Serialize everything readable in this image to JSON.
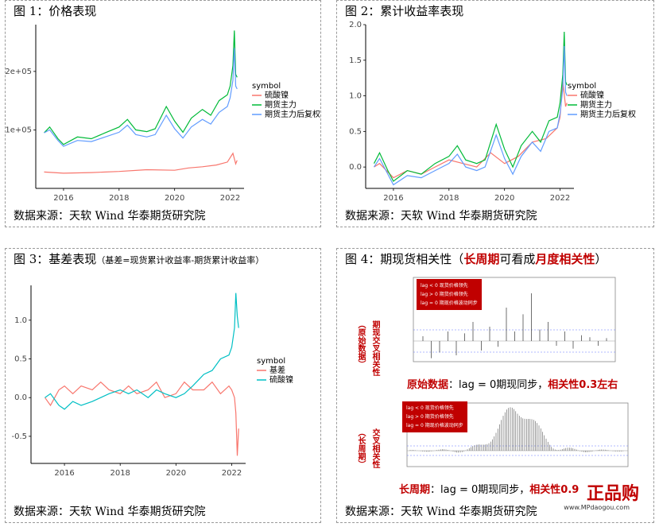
{
  "panels": [
    {
      "title": "图 1：价格表现",
      "source": "数据来源：天软 Wind 华泰期货研究院"
    },
    {
      "title": "图 2：累计收益率表现",
      "source": "数据来源：天软 Wind 华泰期货研究院"
    },
    {
      "title": "图 3：基差表现",
      "title_note": "（基差=现货累计收益率-期货累计收益率）",
      "source": "数据来源：天软 Wind 华泰期货研究院"
    },
    {
      "title": "图 4：期现货相关性（",
      "title_red": "长周期",
      "title_mid": "可看成",
      "title_red2": "月度相关性",
      "title_end": "）",
      "source": "数据来源：天软 Wind 华泰期货研究院"
    }
  ],
  "fig4": {
    "box1": [
      "lag < 0 现货价格领先",
      "lag > 0 期货价格领先",
      "lag = 0 期现价格波动同步"
    ],
    "box2": [
      "lag < 0 现货价格领先",
      "lag > 0 期货价格领先",
      "lag = 0 期现价格波动同步"
    ],
    "vlabel1a": "（原始数据）",
    "vlabel1b": "期现交叉相关性",
    "vlabel2a": "（长周期）",
    "vlabel2b": "交叉相关性",
    "cap1_a": "原始数据",
    "cap1_b": "：lag = 0期现同步，",
    "cap1_c": "相关性0.3左右",
    "cap2_a": "长周期",
    "cap2_b": "：lag = 0期现同步，",
    "cap2_c": "相关性0.9",
    "watermark": "正品购",
    "watermark2": "www.MPdaogou.com"
  },
  "chart_data": [
    {
      "type": "line",
      "legend_title": "symbol",
      "legend_position": "right",
      "xticks": [
        "2016",
        "2018",
        "2020",
        "2022"
      ],
      "yticks": [
        "1e+05",
        "2e+05"
      ],
      "ylim": [
        0,
        280000
      ],
      "xlim": [
        2015.0,
        2022.5
      ],
      "series": [
        {
          "name": "硫酸镍",
          "color": "#f8766d",
          "x": [
            2015.3,
            2016,
            2017,
            2018,
            2019,
            2020,
            2020.5,
            2021,
            2021.5,
            2021.9,
            2022.1,
            2022.2,
            2022.25
          ],
          "y": [
            28000,
            26000,
            27000,
            29000,
            32000,
            31000,
            35000,
            37000,
            40000,
            45000,
            60000,
            42000,
            48000
          ]
        },
        {
          "name": "期货主力",
          "color": "#00ba38",
          "x": [
            2015.3,
            2015.5,
            2015.8,
            2016,
            2016.5,
            2017,
            2017.5,
            2018,
            2018.3,
            2018.6,
            2019,
            2019.3,
            2019.7,
            2020,
            2020.3,
            2020.6,
            2021,
            2021.3,
            2021.6,
            2021.9,
            2022,
            2022.1,
            2022.15,
            2022.2,
            2022.25
          ],
          "y": [
            95000,
            105000,
            85000,
            75000,
            88000,
            85000,
            95000,
            105000,
            118000,
            100000,
            97000,
            102000,
            140000,
            115000,
            96000,
            120000,
            135000,
            125000,
            150000,
            160000,
            175000,
            210000,
            270000,
            195000,
            190000
          ]
        },
        {
          "name": "期货主力后复权",
          "color": "#619cff",
          "x": [
            2015.3,
            2015.5,
            2015.8,
            2016,
            2016.5,
            2017,
            2017.5,
            2018,
            2018.3,
            2018.6,
            2019,
            2019.3,
            2019.7,
            2020,
            2020.3,
            2020.6,
            2021,
            2021.3,
            2021.6,
            2021.9,
            2022,
            2022.1,
            2022.15,
            2022.2,
            2022.25
          ],
          "y": [
            95000,
            100000,
            82000,
            72000,
            82000,
            80000,
            88000,
            96000,
            108000,
            92000,
            88000,
            92000,
            125000,
            102000,
            86000,
            105000,
            118000,
            110000,
            130000,
            140000,
            155000,
            185000,
            240000,
            175000,
            170000
          ]
        }
      ]
    },
    {
      "type": "line",
      "legend_title": "symbol",
      "legend_position": "right",
      "xticks": [
        "2016",
        "2018",
        "2020",
        "2022"
      ],
      "yticks": [
        "0.0",
        "0.5",
        "1.0",
        "1.5",
        "2.0"
      ],
      "ylim": [
        -0.3,
        2.0
      ],
      "xlim": [
        2015.0,
        2022.5
      ],
      "series": [
        {
          "name": "硫酸镍",
          "color": "#f8766d",
          "x": [
            2015.3,
            2015.5,
            2016,
            2016.5,
            2017,
            2017.5,
            2018,
            2018.5,
            2019,
            2019.5,
            2020,
            2020.5,
            2021,
            2021.5,
            2021.9,
            2022,
            2022.1,
            2022.2,
            2022.25
          ],
          "y": [
            0.0,
            0.05,
            -0.15,
            -0.05,
            -0.1,
            0.0,
            0.1,
            0.05,
            0.0,
            0.2,
            0.05,
            0.15,
            0.35,
            0.4,
            0.55,
            0.7,
            1.2,
            0.85,
            0.9
          ]
        },
        {
          "name": "期货主力",
          "color": "#00ba38",
          "x": [
            2015.3,
            2015.5,
            2015.8,
            2016,
            2016.5,
            2017,
            2017.5,
            2018,
            2018.3,
            2018.6,
            2019,
            2019.3,
            2019.7,
            2020,
            2020.3,
            2020.6,
            2021,
            2021.3,
            2021.6,
            2021.9,
            2022,
            2022.1,
            2022.15,
            2022.2,
            2022.25
          ],
          "y": [
            0.05,
            0.2,
            -0.05,
            -0.2,
            -0.05,
            -0.1,
            0.05,
            0.15,
            0.3,
            0.1,
            0.05,
            0.1,
            0.6,
            0.25,
            0.0,
            0.3,
            0.5,
            0.35,
            0.65,
            0.7,
            0.9,
            1.3,
            1.9,
            1.2,
            1.15
          ]
        },
        {
          "name": "期货主力后复权",
          "color": "#619cff",
          "x": [
            2015.3,
            2015.5,
            2015.8,
            2016,
            2016.5,
            2017,
            2017.5,
            2018,
            2018.3,
            2018.6,
            2019,
            2019.3,
            2019.7,
            2020,
            2020.3,
            2020.6,
            2021,
            2021.3,
            2021.6,
            2021.9,
            2022,
            2022.1,
            2022.15,
            2022.2,
            2022.25
          ],
          "y": [
            0.0,
            0.12,
            -0.1,
            -0.25,
            -0.12,
            -0.15,
            -0.05,
            0.05,
            0.18,
            0.0,
            -0.05,
            0.0,
            0.45,
            0.12,
            -0.1,
            0.15,
            0.35,
            0.22,
            0.5,
            0.55,
            0.75,
            1.1,
            1.7,
            1.05,
            1.0
          ]
        }
      ]
    },
    {
      "type": "line",
      "legend_title": "symbol",
      "legend_position": "right",
      "xticks": [
        "2016",
        "2018",
        "2020",
        "2022"
      ],
      "yticks": [
        "-0.5",
        "0.0",
        "0.5",
        "1.0"
      ],
      "ylim": [
        -0.85,
        1.45
      ],
      "xlim": [
        2014.8,
        2022.5
      ],
      "series": [
        {
          "name": "基差",
          "color": "#f8766d",
          "x": [
            2015.3,
            2015.5,
            2015.8,
            2016,
            2016.3,
            2016.6,
            2017,
            2017.3,
            2017.6,
            2018,
            2018.3,
            2018.6,
            2019,
            2019.3,
            2019.6,
            2020,
            2020.3,
            2020.6,
            2021,
            2021.3,
            2021.6,
            2021.9,
            2022,
            2022.1,
            2022.15,
            2022.2,
            2022.25
          ],
          "y": [
            0.0,
            -0.1,
            0.1,
            0.15,
            0.05,
            0.15,
            0.1,
            0.2,
            0.1,
            0.05,
            0.15,
            0.05,
            0.1,
            0.2,
            0.0,
            0.05,
            0.2,
            0.1,
            0.1,
            0.2,
            0.05,
            0.15,
            0.1,
            0.0,
            -0.2,
            -0.75,
            -0.4
          ]
        },
        {
          "name": "硫酸镍",
          "color": "#00bfc4",
          "x": [
            2015.3,
            2015.5,
            2015.8,
            2016,
            2016.3,
            2016.6,
            2017,
            2017.3,
            2017.6,
            2018,
            2018.3,
            2018.6,
            2019,
            2019.3,
            2019.6,
            2020,
            2020.3,
            2020.6,
            2021,
            2021.3,
            2021.6,
            2021.9,
            2022,
            2022.1,
            2022.15,
            2022.2,
            2022.25
          ],
          "y": [
            0.0,
            0.05,
            -0.1,
            -0.15,
            -0.05,
            -0.1,
            -0.05,
            0.0,
            0.05,
            0.1,
            0.05,
            0.1,
            0.0,
            0.1,
            0.05,
            0.0,
            0.05,
            0.15,
            0.3,
            0.35,
            0.5,
            0.55,
            0.65,
            0.9,
            1.35,
            1.05,
            0.9
          ]
        }
      ]
    }
  ]
}
